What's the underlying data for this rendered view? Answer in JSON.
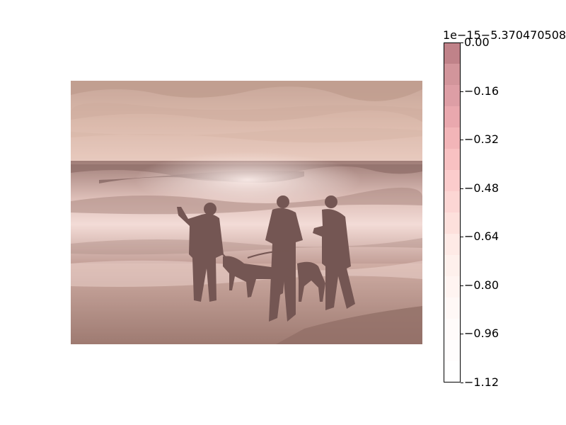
{
  "figure": {
    "image_alt": "beach-scene-photo-three-people-two-dogs"
  },
  "colorbar": {
    "offset_label": "1e−15−5.370470508",
    "segment_colors": [
      "#c08289",
      "#d2959b",
      "#dd9ea5",
      "#e9a8ae",
      "#f2b5b8",
      "#f8c1c2",
      "#fbcccc",
      "#fcd6d4",
      "#fde0dc",
      "#feeae6",
      "#fef0ec",
      "#fff4f1",
      "#fff8f6",
      "#fffbfa",
      "#fffdfd",
      "#ffffff"
    ],
    "ticks": [
      {
        "label": "0.00",
        "value": 0.0
      },
      {
        "label": "−0.16",
        "value": -0.16
      },
      {
        "label": "−0.32",
        "value": -0.32
      },
      {
        "label": "−0.48",
        "value": -0.48
      },
      {
        "label": "−0.64",
        "value": -0.64
      },
      {
        "label": "−0.80",
        "value": -0.8
      },
      {
        "label": "−0.96",
        "value": -0.96
      },
      {
        "label": "−1.12",
        "value": -1.12
      }
    ],
    "range": [
      -1.12,
      0.0
    ]
  }
}
